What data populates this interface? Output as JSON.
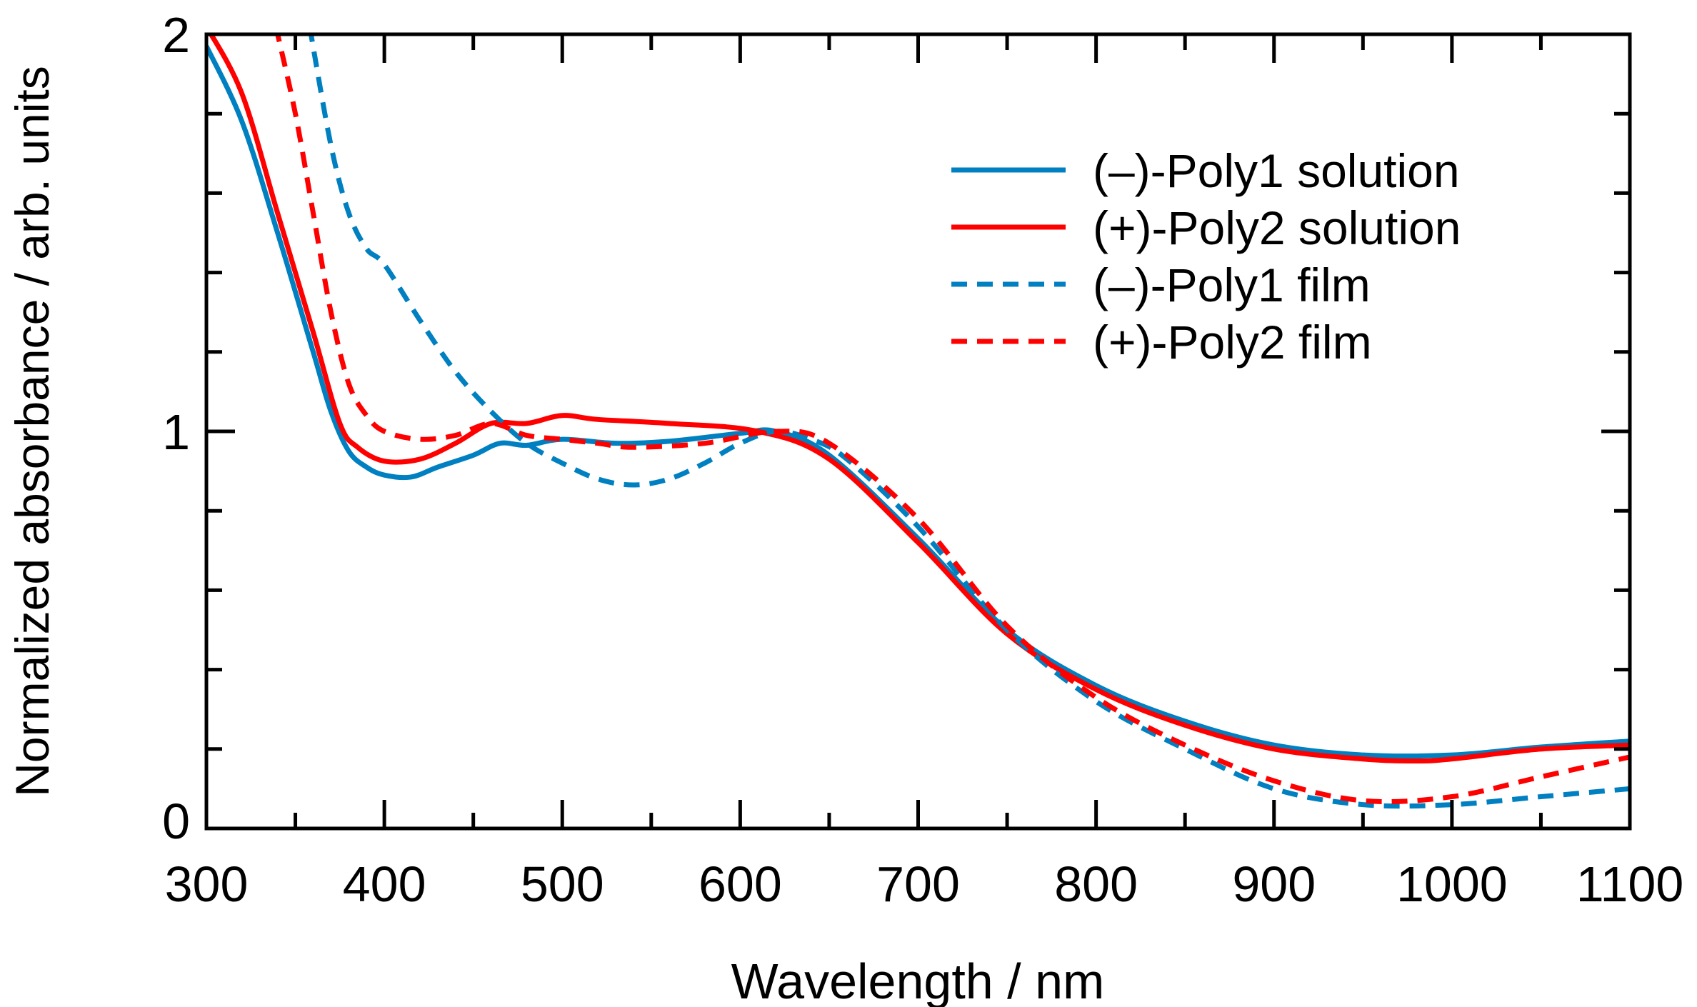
{
  "chart_data": {
    "type": "line",
    "title": "",
    "xlabel": "Wavelength / nm",
    "ylabel": "Normalized absorbance / arb. units",
    "xlim": [
      300,
      1100
    ],
    "ylim": [
      0,
      2
    ],
    "xticks": [
      300,
      400,
      500,
      600,
      700,
      800,
      900,
      1000,
      1100
    ],
    "yticks": [
      0,
      1,
      2
    ],
    "grid": false,
    "legend_position": "top-right",
    "series": [
      {
        "name": "(–)-Poly1 solution",
        "color": "#0080c0",
        "dash": "solid",
        "x": [
          300,
          320,
          340,
          360,
          370,
          380,
          390,
          400,
          415,
          430,
          450,
          465,
          480,
          500,
          530,
          560,
          600,
          620,
          650,
          700,
          750,
          800,
          850,
          900,
          950,
          1000,
          1050,
          1100
        ],
        "y": [
          1.97,
          1.78,
          1.5,
          1.2,
          1.05,
          0.95,
          0.91,
          0.89,
          0.885,
          0.91,
          0.94,
          0.97,
          0.965,
          0.98,
          0.97,
          0.975,
          0.995,
          1.0,
          0.94,
          0.73,
          0.5,
          0.36,
          0.27,
          0.21,
          0.185,
          0.185,
          0.205,
          0.22
        ]
      },
      {
        "name": "(+)-Poly2 solution",
        "color": "#ff0000",
        "dash": "solid",
        "x": [
          300,
          320,
          340,
          360,
          375,
          385,
          400,
          420,
          440,
          460,
          480,
          500,
          520,
          560,
          610,
          650,
          700,
          750,
          800,
          850,
          900,
          950,
          980,
          1000,
          1050,
          1100
        ],
        "y": [
          2.02,
          1.85,
          1.55,
          1.25,
          1.02,
          0.96,
          0.925,
          0.93,
          0.97,
          1.02,
          1.02,
          1.04,
          1.03,
          1.02,
          1.0,
          0.93,
          0.72,
          0.49,
          0.35,
          0.26,
          0.2,
          0.175,
          0.17,
          0.175,
          0.2,
          0.21
        ]
      },
      {
        "name": "(–)-Poly1 film",
        "color": "#0080c0",
        "dash": "dashed",
        "x": [
          358,
          370,
          380,
          390,
          400,
          420,
          440,
          460,
          480,
          500,
          520,
          540,
          560,
          580,
          600,
          620,
          640,
          660,
          700,
          750,
          800,
          850,
          900,
          950,
          1000,
          1050,
          1100
        ],
        "y": [
          2.02,
          1.72,
          1.55,
          1.46,
          1.42,
          1.28,
          1.15,
          1.05,
          0.97,
          0.92,
          0.88,
          0.865,
          0.88,
          0.92,
          0.97,
          1.0,
          0.98,
          0.93,
          0.76,
          0.5,
          0.32,
          0.2,
          0.1,
          0.06,
          0.06,
          0.08,
          0.1
        ]
      },
      {
        "name": "(+)-Poly2 film",
        "color": "#ff0000",
        "dash": "dashed",
        "x": [
          339,
          350,
          360,
          370,
          380,
          390,
          400,
          420,
          440,
          460,
          480,
          500,
          520,
          540,
          580,
          620,
          650,
          700,
          750,
          800,
          850,
          900,
          950,
          1000,
          1050,
          1100
        ],
        "y": [
          2.02,
          1.8,
          1.55,
          1.3,
          1.12,
          1.04,
          1.0,
          0.98,
          0.99,
          1.02,
          0.99,
          0.98,
          0.97,
          0.96,
          0.97,
          1.0,
          0.97,
          0.78,
          0.51,
          0.33,
          0.21,
          0.12,
          0.07,
          0.08,
          0.13,
          0.18
        ]
      }
    ]
  }
}
